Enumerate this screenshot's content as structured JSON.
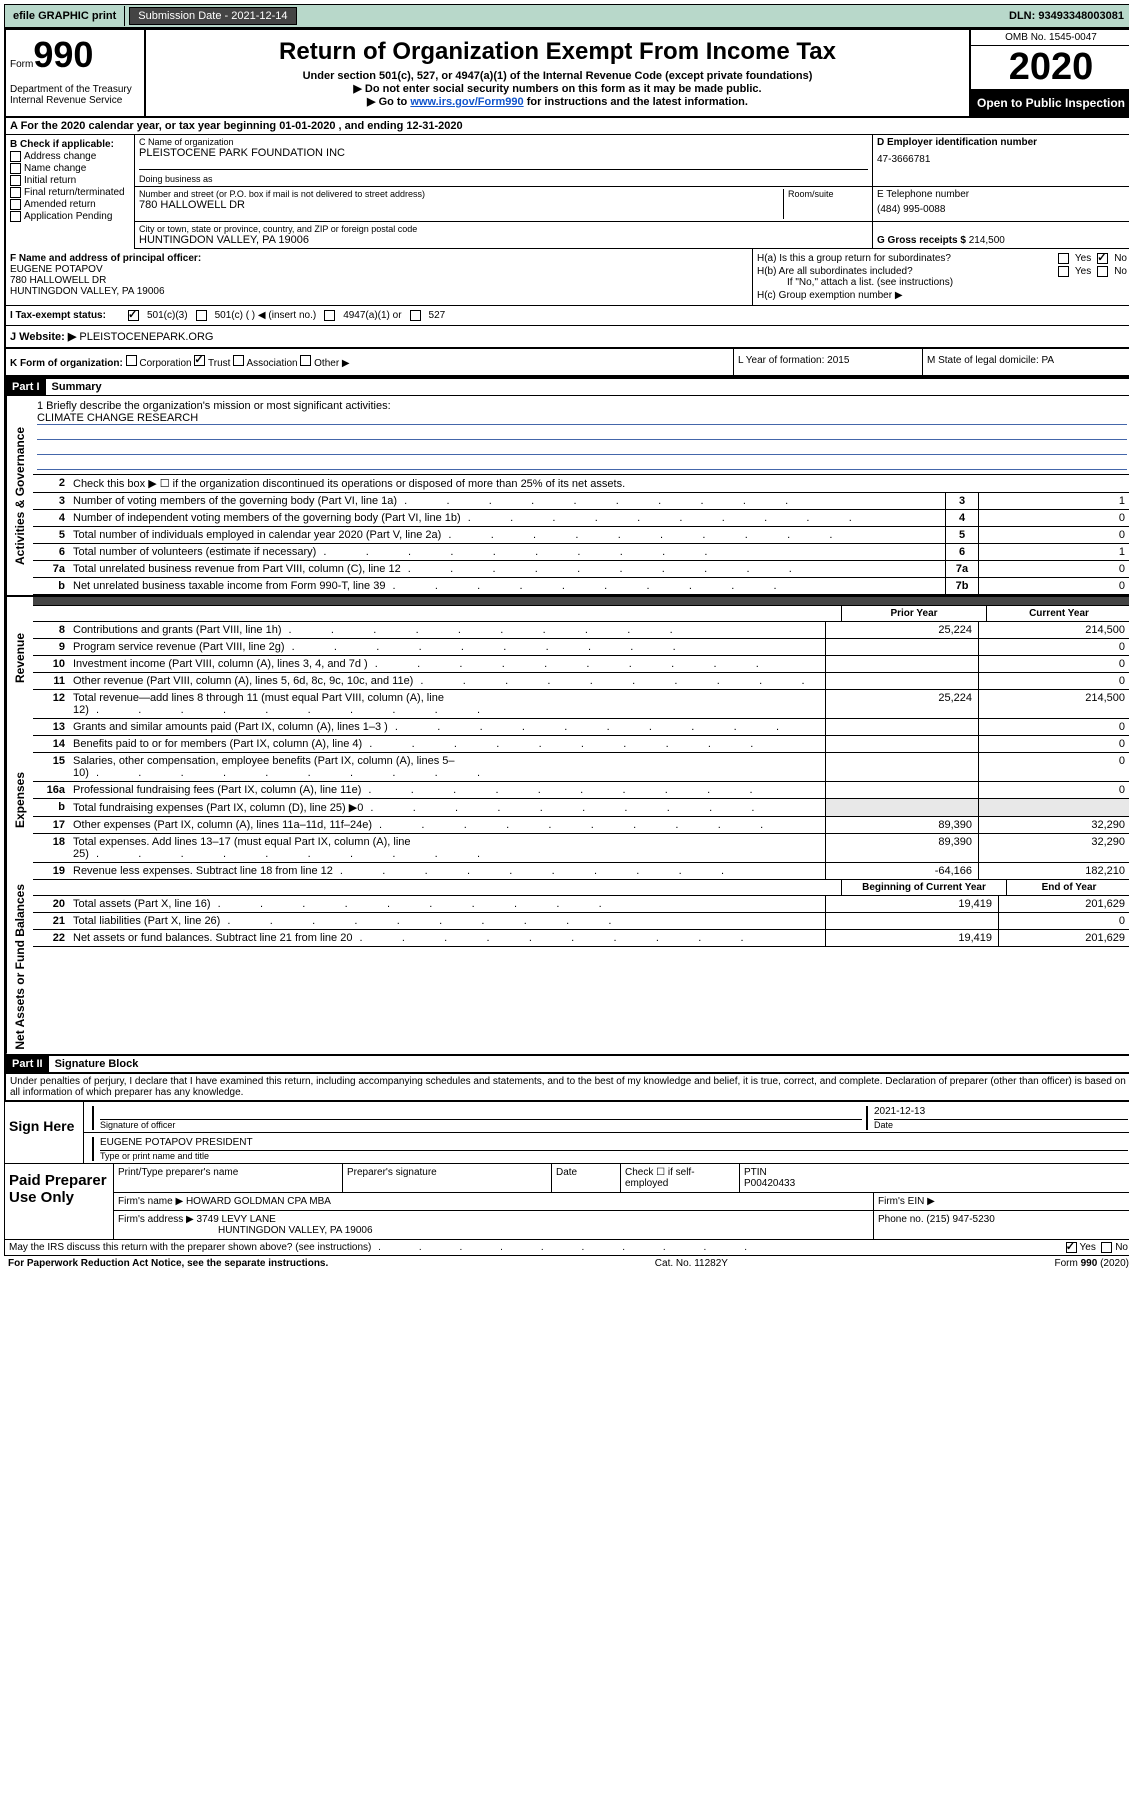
{
  "colors": {
    "topbar_bg": "#b8d8ca",
    "black": "#000000",
    "btn_bg": "#444444",
    "link": "#1155cc",
    "rule_blue": "#4466aa",
    "shade": "#e8e8e8"
  },
  "topbar": {
    "efile": "efile GRAPHIC print",
    "sub_date_label": "Submission Date - 2021-12-14",
    "dln": "DLN: 93493348003081"
  },
  "header": {
    "form_label": "Form",
    "form_num": "990",
    "title": "Return of Organization Exempt From Income Tax",
    "sub1": "Under section 501(c), 527, or 4947(a)(1) of the Internal Revenue Code (except private foundations)",
    "sub2": "▶ Do not enter social security numbers on this form as it may be made public.",
    "sub3_pre": "▶ Go to ",
    "sub3_link": "www.irs.gov/Form990",
    "sub3_post": " for instructions and the latest information.",
    "dept": "Department of the Treasury\nInternal Revenue Service",
    "omb": "OMB No. 1545-0047",
    "year": "2020",
    "inspect": "Open to Public Inspection"
  },
  "rowA": "A For the 2020 calendar year, or tax year beginning 01-01-2020   , and ending 12-31-2020",
  "colB": {
    "label": "B Check if applicable:",
    "items": [
      "Address change",
      "Name change",
      "Initial return",
      "Final return/terminated",
      "Amended return",
      "Application Pending"
    ]
  },
  "C": {
    "name_lbl": "C Name of organization",
    "name": "PLEISTOCENE PARK FOUNDATION INC",
    "dba_lbl": "Doing business as",
    "addr_lbl": "Number and street (or P.O. box if mail is not delivered to street address)",
    "room_lbl": "Room/suite",
    "addr": "780 HALLOWELL DR",
    "city_lbl": "City or town, state or province, country, and ZIP or foreign postal code",
    "city": "HUNTINGDON VALLEY, PA  19006"
  },
  "D": {
    "ein_lbl": "D Employer identification number",
    "ein": "47-3666781",
    "tel_lbl": "E Telephone number",
    "tel": "(484) 995-0088",
    "gross_lbl": "G Gross receipts $",
    "gross": "214,500"
  },
  "F": {
    "lbl": "F Name and address of principal officer:",
    "name": "EUGENE POTAPOV",
    "addr1": "780 HALLOWELL DR",
    "addr2": "HUNTINGDON VALLEY, PA  19006"
  },
  "H": {
    "a_lbl": "H(a)  Is this a group return for subordinates?",
    "b_lbl": "H(b)  Are all subordinates included?",
    "b_note": "If \"No,\" attach a list. (see instructions)",
    "c_lbl": "H(c)  Group exemption number ▶",
    "yes": "Yes",
    "no": "No"
  },
  "I": {
    "lbl": "I  Tax-exempt status:",
    "o1": "501(c)(3)",
    "o2": "501(c) (   ) ◀ (insert no.)",
    "o3": "4947(a)(1) or",
    "o4": "527"
  },
  "J": {
    "lbl": "J  Website: ▶",
    "val": "PLEISTOCENEPARK.ORG"
  },
  "K": {
    "lbl": "K Form of organization:",
    "opts": [
      "Corporation",
      "Trust",
      "Association",
      "Other ▶"
    ],
    "L": "L Year of formation: 2015",
    "M": "M State of legal domicile: PA"
  },
  "part1": {
    "hdr": "Part I",
    "title": "Summary",
    "l1": "1  Briefly describe the organization's mission or most significant activities:",
    "mission": "CLIMATE CHANGE RESEARCH",
    "l2": "Check this box ▶ ☐  if the organization discontinued its operations or disposed of more than 25% of its net assets.",
    "vlabels": {
      "gov": "Activities & Governance",
      "rev": "Revenue",
      "exp": "Expenses",
      "net": "Net Assets or Fund Balances"
    },
    "gov_lines": [
      {
        "n": "3",
        "d": "Number of voting members of the governing body (Part VI, line 1a)",
        "box": "3",
        "v": "1"
      },
      {
        "n": "4",
        "d": "Number of independent voting members of the governing body (Part VI, line 1b)",
        "box": "4",
        "v": "0"
      },
      {
        "n": "5",
        "d": "Total number of individuals employed in calendar year 2020 (Part V, line 2a)",
        "box": "5",
        "v": "0"
      },
      {
        "n": "6",
        "d": "Total number of volunteers (estimate if necessary)",
        "box": "6",
        "v": "1"
      },
      {
        "n": "7a",
        "d": "Total unrelated business revenue from Part VIII, column (C), line 12",
        "box": "7a",
        "v": "0"
      },
      {
        "n": "b",
        "d": "Net unrelated business taxable income from Form 990-T, line 39",
        "box": "7b",
        "v": "0"
      }
    ],
    "col_hdr": {
      "prior": "Prior Year",
      "curr": "Current Year"
    },
    "rev_lines": [
      {
        "n": "8",
        "d": "Contributions and grants (Part VIII, line 1h)",
        "p": "25,224",
        "c": "214,500"
      },
      {
        "n": "9",
        "d": "Program service revenue (Part VIII, line 2g)",
        "p": "",
        "c": "0"
      },
      {
        "n": "10",
        "d": "Investment income (Part VIII, column (A), lines 3, 4, and 7d )",
        "p": "",
        "c": "0"
      },
      {
        "n": "11",
        "d": "Other revenue (Part VIII, column (A), lines 5, 6d, 8c, 9c, 10c, and 11e)",
        "p": "",
        "c": "0"
      },
      {
        "n": "12",
        "d": "Total revenue—add lines 8 through 11 (must equal Part VIII, column (A), line 12)",
        "p": "25,224",
        "c": "214,500"
      }
    ],
    "exp_lines": [
      {
        "n": "13",
        "d": "Grants and similar amounts paid (Part IX, column (A), lines 1–3 )",
        "p": "",
        "c": "0"
      },
      {
        "n": "14",
        "d": "Benefits paid to or for members (Part IX, column (A), line 4)",
        "p": "",
        "c": "0"
      },
      {
        "n": "15",
        "d": "Salaries, other compensation, employee benefits (Part IX, column (A), lines 5–10)",
        "p": "",
        "c": "0"
      },
      {
        "n": "16a",
        "d": "Professional fundraising fees (Part IX, column (A), line 11e)",
        "p": "",
        "c": "0"
      },
      {
        "n": "b",
        "d": "Total fundraising expenses (Part IX, column (D), line 25) ▶0",
        "p": "SHADE",
        "c": "SHADE"
      },
      {
        "n": "17",
        "d": "Other expenses (Part IX, column (A), lines 11a–11d, 11f–24e)",
        "p": "89,390",
        "c": "32,290"
      },
      {
        "n": "18",
        "d": "Total expenses. Add lines 13–17 (must equal Part IX, column (A), line 25)",
        "p": "89,390",
        "c": "32,290"
      },
      {
        "n": "19",
        "d": "Revenue less expenses. Subtract line 18 from line 12",
        "p": "-64,166",
        "c": "182,210"
      }
    ],
    "net_hdr": {
      "prior": "Beginning of Current Year",
      "curr": "End of Year"
    },
    "net_lines": [
      {
        "n": "20",
        "d": "Total assets (Part X, line 16)",
        "p": "19,419",
        "c": "201,629"
      },
      {
        "n": "21",
        "d": "Total liabilities (Part X, line 26)",
        "p": "",
        "c": "0"
      },
      {
        "n": "22",
        "d": "Net assets or fund balances. Subtract line 21 from line 20",
        "p": "19,419",
        "c": "201,629"
      }
    ]
  },
  "part2": {
    "hdr": "Part II",
    "title": "Signature Block",
    "penalty": "Under penalties of perjury, I declare that I have examined this return, including accompanying schedules and statements, and to the best of my knowledge and belief, it is true, correct, and complete. Declaration of preparer (other than officer) is based on all information of which preparer has any knowledge."
  },
  "sign": {
    "left": "Sign Here",
    "sig_lbl": "Signature of officer",
    "date_lbl": "Date",
    "date": "2021-12-13",
    "name": "EUGENE POTAPOV PRESIDENT",
    "name_lbl": "Type or print name and title"
  },
  "prep": {
    "left": "Paid Preparer Use Only",
    "h1": "Print/Type preparer's name",
    "h2": "Preparer's signature",
    "h3": "Date",
    "h4_chk": "Check ☐ if self-employed",
    "h5": "PTIN",
    "ptin": "P00420433",
    "firm_lbl": "Firm's name    ▶",
    "firm": "HOWARD GOLDMAN CPA MBA",
    "ein_lbl": "Firm's EIN ▶",
    "addr_lbl": "Firm's address ▶",
    "addr1": "3749 LEVY LANE",
    "addr2": "HUNTINGDON VALLEY, PA  19006",
    "phone_lbl": "Phone no.",
    "phone": "(215) 947-5230"
  },
  "foot": {
    "discuss": "May the IRS discuss this return with the preparer shown above? (see instructions)",
    "yes": "Yes",
    "no": "No",
    "pra": "For Paperwork Reduction Act Notice, see the separate instructions.",
    "cat": "Cat. No. 11282Y",
    "form": "Form 990 (2020)"
  }
}
